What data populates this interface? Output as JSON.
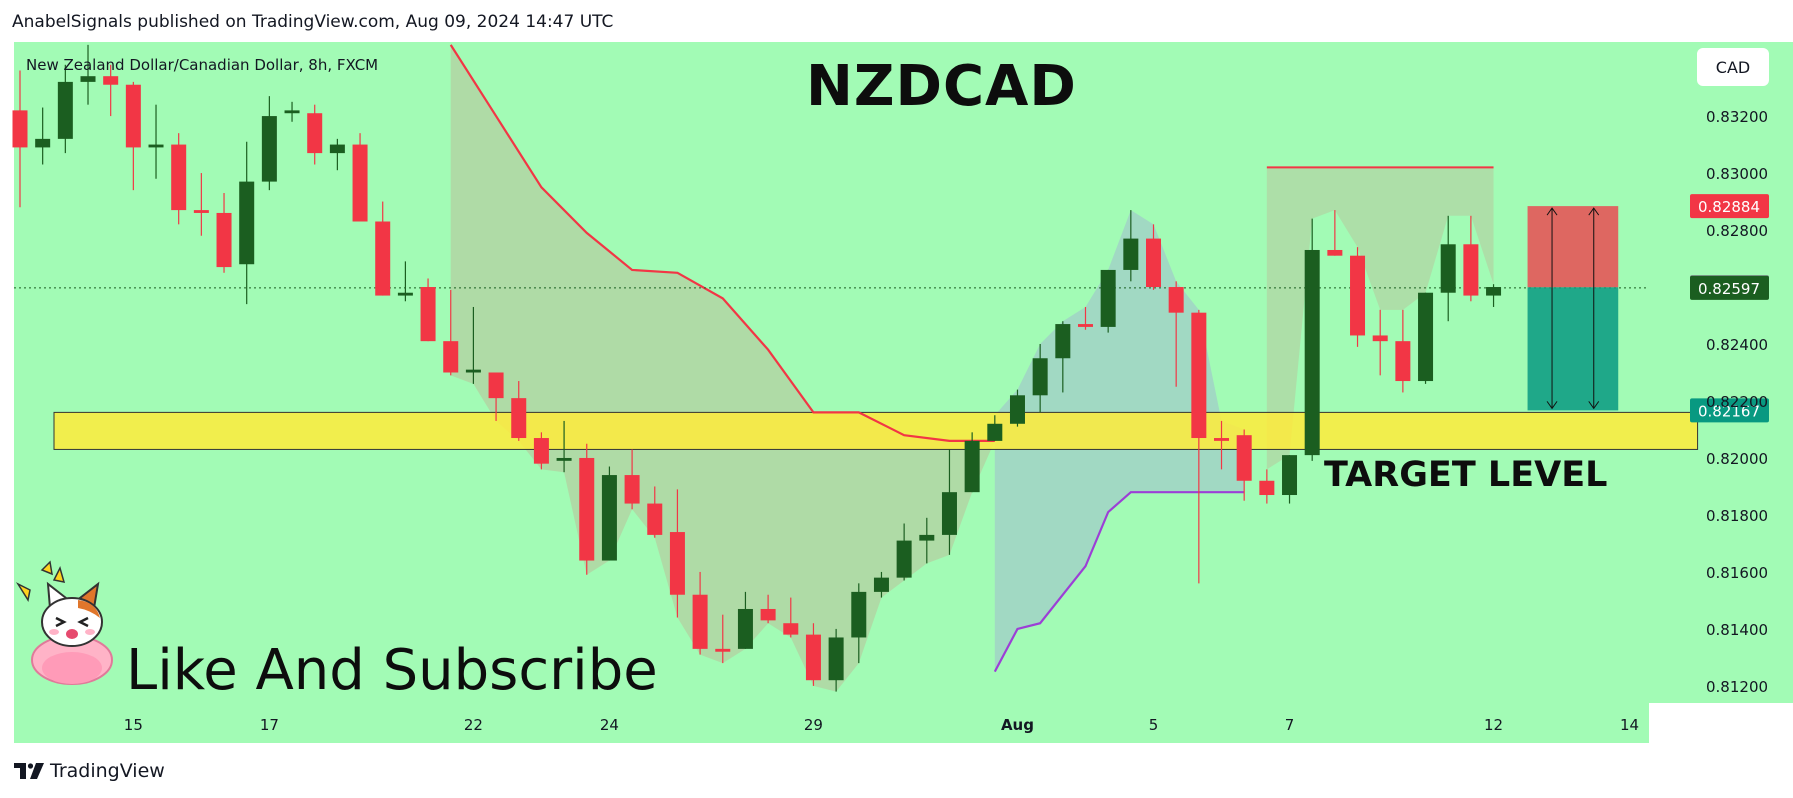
{
  "header": {
    "text": "AnabelSignals published on TradingView.com, Aug 09, 2024 14:47 UTC"
  },
  "symbol_label": "New Zealand Dollar/Canadian Dollar, 8h, FXCM",
  "big_title": "NZDCAD",
  "annotation_target": "TARGET LEVEL",
  "annotation_cta": "Like And Subscribe",
  "currency_button": "CAD",
  "footer": {
    "logo_text": "TradingView"
  },
  "colors": {
    "background": "#a2fbb5",
    "bull": "#1b5e20",
    "bear": "#f23645",
    "resistance_line": "#f23645",
    "support_line": "#9c3fd6",
    "zone": "#ffeb3b",
    "stop": "#f23645",
    "profit": "#089981"
  },
  "icons": [
    "tradingview-logo-icon",
    "cat-sticker-icon"
  ],
  "chart_data": {
    "type": "candlestick",
    "title": "NZDCAD",
    "subtitle": "New Zealand Dollar/Canadian Dollar, 8h, FXCM",
    "ylim": [
      0.8114,
      0.8346
    ],
    "y_ticks": [
      {
        "v": 0.832,
        "label": "0.83200"
      },
      {
        "v": 0.83,
        "label": "0.83000"
      },
      {
        "v": 0.828,
        "label": "0.82800"
      },
      {
        "v": 0.824,
        "label": "0.82400"
      },
      {
        "v": 0.822,
        "label": "0.82200"
      },
      {
        "v": 0.82,
        "label": "0.82000"
      },
      {
        "v": 0.818,
        "label": "0.81800"
      },
      {
        "v": 0.816,
        "label": "0.81600"
      },
      {
        "v": 0.814,
        "label": "0.81400"
      },
      {
        "v": 0.812,
        "label": "0.81200"
      }
    ],
    "x_ticks": [
      {
        "i": 5,
        "label": "15"
      },
      {
        "i": 11,
        "label": "17"
      },
      {
        "i": 20,
        "label": "22"
      },
      {
        "i": 26,
        "label": "24"
      },
      {
        "i": 35,
        "label": "29"
      },
      {
        "i": 44,
        "label": "Aug"
      },
      {
        "i": 50,
        "label": "5"
      },
      {
        "i": 56,
        "label": "7"
      },
      {
        "i": 65,
        "label": "12"
      },
      {
        "i": 71,
        "label": "14"
      }
    ],
    "candles": [
      {
        "o": 0.8322,
        "h": 0.8336,
        "c": 0.8309,
        "l": 0.8288
      },
      {
        "o": 0.8309,
        "h": 0.8323,
        "c": 0.8312,
        "l": 0.8303
      },
      {
        "o": 0.8312,
        "h": 0.8338,
        "c": 0.8332,
        "l": 0.8307
      },
      {
        "o": 0.8332,
        "h": 0.8345,
        "c": 0.8334,
        "l": 0.8324
      },
      {
        "o": 0.8334,
        "h": 0.8338,
        "c": 0.8331,
        "l": 0.832
      },
      {
        "o": 0.8331,
        "h": 0.8332,
        "c": 0.8309,
        "l": 0.8294
      },
      {
        "o": 0.8309,
        "h": 0.8324,
        "c": 0.831,
        "l": 0.8298
      },
      {
        "o": 0.831,
        "h": 0.8314,
        "c": 0.8287,
        "l": 0.8282
      },
      {
        "o": 0.8287,
        "h": 0.83,
        "c": 0.8286,
        "l": 0.8278
      },
      {
        "o": 0.8286,
        "h": 0.8293,
        "c": 0.8267,
        "l": 0.8265
      },
      {
        "o": 0.8268,
        "h": 0.8311,
        "c": 0.8297,
        "l": 0.8254
      },
      {
        "o": 0.8297,
        "h": 0.8327,
        "c": 0.832,
        "l": 0.8294
      },
      {
        "o": 0.8321,
        "h": 0.8325,
        "c": 0.8322,
        "l": 0.8318
      },
      {
        "o": 0.8321,
        "h": 0.8324,
        "c": 0.8307,
        "l": 0.8303
      },
      {
        "o": 0.8307,
        "h": 0.8312,
        "c": 0.831,
        "l": 0.8301
      },
      {
        "o": 0.831,
        "h": 0.8314,
        "c": 0.8283,
        "l": 0.8283
      },
      {
        "o": 0.8283,
        "h": 0.829,
        "c": 0.8257,
        "l": 0.8257
      },
      {
        "o": 0.8257,
        "h": 0.8269,
        "c": 0.8258,
        "l": 0.8255
      },
      {
        "o": 0.826,
        "h": 0.8263,
        "c": 0.8241,
        "l": 0.8241
      },
      {
        "o": 0.8241,
        "h": 0.8259,
        "c": 0.823,
        "l": 0.8229
      },
      {
        "o": 0.823,
        "h": 0.8253,
        "c": 0.8231,
        "l": 0.8226
      },
      {
        "o": 0.823,
        "h": 0.823,
        "c": 0.8221,
        "l": 0.8213
      },
      {
        "o": 0.8221,
        "h": 0.8227,
        "c": 0.8207,
        "l": 0.8206
      },
      {
        "o": 0.8207,
        "h": 0.8209,
        "c": 0.8198,
        "l": 0.8196
      },
      {
        "o": 0.8199,
        "h": 0.8213,
        "c": 0.82,
        "l": 0.8195
      },
      {
        "o": 0.82,
        "h": 0.8205,
        "c": 0.8164,
        "l": 0.8159
      },
      {
        "o": 0.8164,
        "h": 0.8197,
        "c": 0.8194,
        "l": 0.8164
      },
      {
        "o": 0.8194,
        "h": 0.8203,
        "c": 0.8184,
        "l": 0.8182
      },
      {
        "o": 0.8184,
        "h": 0.819,
        "c": 0.8173,
        "l": 0.8172
      },
      {
        "o": 0.8174,
        "h": 0.8189,
        "c": 0.8152,
        "l": 0.8144
      },
      {
        "o": 0.8152,
        "h": 0.816,
        "c": 0.8133,
        "l": 0.8131
      },
      {
        "o": 0.8133,
        "h": 0.8145,
        "c": 0.8132,
        "l": 0.8128
      },
      {
        "o": 0.8133,
        "h": 0.8153,
        "c": 0.8147,
        "l": 0.8133
      },
      {
        "o": 0.8147,
        "h": 0.8152,
        "c": 0.8143,
        "l": 0.8142
      },
      {
        "o": 0.8142,
        "h": 0.8151,
        "c": 0.8138,
        "l": 0.8137
      },
      {
        "o": 0.8138,
        "h": 0.8142,
        "c": 0.8122,
        "l": 0.812
      },
      {
        "o": 0.8122,
        "h": 0.814,
        "c": 0.8137,
        "l": 0.8118
      },
      {
        "o": 0.8137,
        "h": 0.8156,
        "c": 0.8153,
        "l": 0.8128
      },
      {
        "o": 0.8153,
        "h": 0.816,
        "c": 0.8158,
        "l": 0.8151
      },
      {
        "o": 0.8158,
        "h": 0.8177,
        "c": 0.8171,
        "l": 0.8157
      },
      {
        "o": 0.8171,
        "h": 0.8179,
        "c": 0.8173,
        "l": 0.8163
      },
      {
        "o": 0.8173,
        "h": 0.8203,
        "c": 0.8188,
        "l": 0.8166
      },
      {
        "o": 0.8188,
        "h": 0.8209,
        "c": 0.8206,
        "l": 0.8188
      },
      {
        "o": 0.8206,
        "h": 0.8215,
        "c": 0.8212,
        "l": 0.8206
      },
      {
        "o": 0.8212,
        "h": 0.8224,
        "c": 0.8222,
        "l": 0.8211
      },
      {
        "o": 0.8222,
        "h": 0.824,
        "c": 0.8235,
        "l": 0.8216
      },
      {
        "o": 0.8235,
        "h": 0.8248,
        "c": 0.8247,
        "l": 0.8223
      },
      {
        "o": 0.8247,
        "h": 0.8253,
        "c": 0.8246,
        "l": 0.8245
      },
      {
        "o": 0.8246,
        "h": 0.8266,
        "c": 0.8266,
        "l": 0.8244
      },
      {
        "o": 0.8266,
        "h": 0.8287,
        "c": 0.8277,
        "l": 0.8262
      },
      {
        "o": 0.8277,
        "h": 0.8282,
        "c": 0.826,
        "l": 0.8259
      },
      {
        "o": 0.826,
        "h": 0.8262,
        "c": 0.8251,
        "l": 0.8225
      },
      {
        "o": 0.8251,
        "h": 0.8252,
        "c": 0.8207,
        "l": 0.8156
      },
      {
        "o": 0.8207,
        "h": 0.8213,
        "c": 0.8206,
        "l": 0.8196
      },
      {
        "o": 0.8208,
        "h": 0.821,
        "c": 0.8192,
        "l": 0.8185
      },
      {
        "o": 0.8192,
        "h": 0.8196,
        "c": 0.8187,
        "l": 0.8184
      },
      {
        "o": 0.8187,
        "h": 0.8201,
        "c": 0.8201,
        "l": 0.8184
      },
      {
        "o": 0.8201,
        "h": 0.8284,
        "c": 0.8273,
        "l": 0.8199
      },
      {
        "o": 0.8273,
        "h": 0.8287,
        "c": 0.8271,
        "l": 0.8271
      },
      {
        "o": 0.8271,
        "h": 0.8274,
        "c": 0.8243,
        "l": 0.8239
      },
      {
        "o": 0.8243,
        "h": 0.8252,
        "c": 0.8241,
        "l": 0.8229
      },
      {
        "o": 0.8241,
        "h": 0.8252,
        "c": 0.8227,
        "l": 0.8223
      },
      {
        "o": 0.8227,
        "h": 0.8258,
        "c": 0.8258,
        "l": 0.8226
      },
      {
        "o": 0.8258,
        "h": 0.8285,
        "c": 0.8275,
        "l": 0.8248
      },
      {
        "o": 0.8275,
        "h": 0.8285,
        "c": 0.8257,
        "l": 0.8255
      },
      {
        "o": 0.8257,
        "h": 0.8261,
        "c": 0.826,
        "l": 0.8253
      }
    ],
    "series": [
      {
        "name": "",
        "color": "#f23645",
        "points": [
          [
            19,
            0.8345
          ],
          [
            21,
            0.832
          ],
          [
            23,
            0.8295
          ],
          [
            25,
            0.8279
          ],
          [
            27,
            0.8266
          ],
          [
            29,
            0.8265
          ],
          [
            31,
            0.8256
          ],
          [
            33,
            0.8238
          ],
          [
            35,
            0.8216
          ],
          [
            37,
            0.8216
          ],
          [
            39,
            0.8208
          ],
          [
            41,
            0.8206
          ],
          [
            43,
            0.8206
          ]
        ]
      },
      {
        "name": "",
        "color": "#9c3fd6",
        "points": [
          [
            43,
            0.8125
          ],
          [
            44,
            0.814
          ],
          [
            45,
            0.8142
          ],
          [
            46,
            0.8152
          ],
          [
            47,
            0.8162
          ],
          [
            48,
            0.8181
          ],
          [
            49,
            0.8188
          ],
          [
            50,
            0.8188
          ],
          [
            51,
            0.8188
          ],
          [
            52,
            0.8188
          ],
          [
            53,
            0.8188
          ],
          [
            54,
            0.8188
          ]
        ]
      }
    ],
    "resistance_line": {
      "v": 0.8302,
      "x0": 55,
      "x1": 65
    },
    "support_zone": {
      "top": 0.8216,
      "bottom": 0.8203,
      "x0": 1.5,
      "x1": 74
    },
    "position": {
      "entry": 0.82599,
      "stop": 0.82884,
      "target": 0.82167,
      "x0": 66.5,
      "x1": 70.5
    },
    "price_labels": [
      {
        "v": 0.82884,
        "label": "0.82884",
        "color": "#f23645"
      },
      {
        "v": 0.82599,
        "label": "0.82599",
        "color": "#787b86"
      },
      {
        "v": 0.82597,
        "label": "0.82597",
        "color": "#1b5e20"
      },
      {
        "v": 0.82167,
        "label": "0.82167",
        "color": "#089981"
      }
    ],
    "current_price": 0.82597
  }
}
